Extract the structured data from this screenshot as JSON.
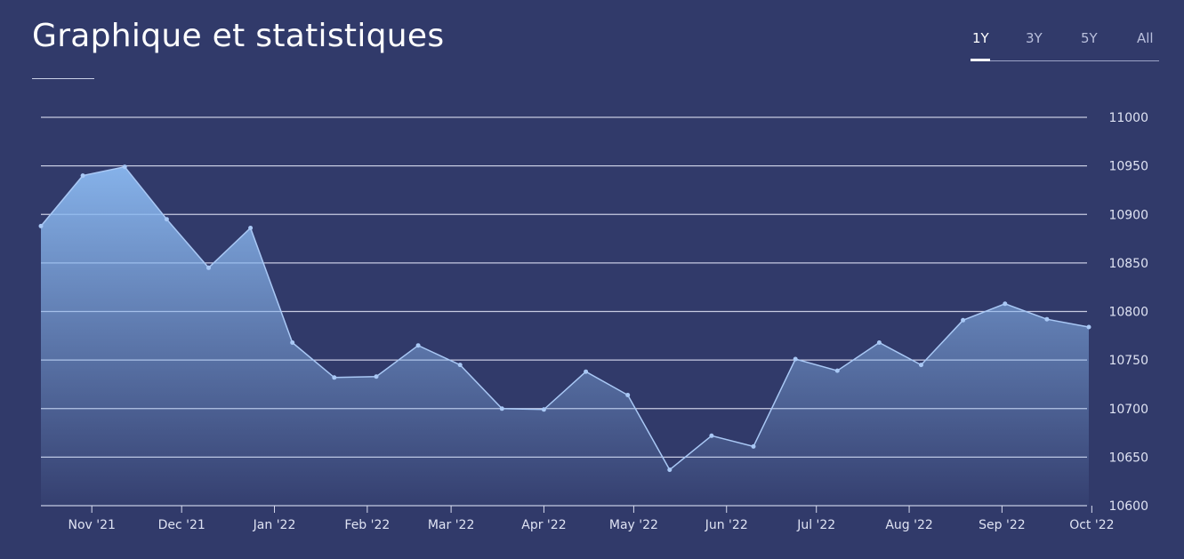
{
  "header": {
    "title": "Graphique et statistiques",
    "ranges": [
      "1Y",
      "3Y",
      "5Y",
      "All"
    ],
    "active_range": "1Y"
  },
  "colors": {
    "background": "#313a6a",
    "line": "#a9c8f5",
    "fill_top": "#8ab8f0",
    "grid": "#d8dcf0",
    "active_tab": "#ffffff"
  },
  "chart_data": {
    "type": "area",
    "xlabel": "",
    "ylabel": "",
    "ylim": [
      10600,
      11000
    ],
    "y_ticks": [
      10600,
      10650,
      10700,
      10750,
      10800,
      10850,
      10900,
      10950,
      11000
    ],
    "y_axis_position": "right",
    "grid": true,
    "x_ticks": [
      {
        "label": "Nov '21",
        "date": "2021-11-01"
      },
      {
        "label": "Dec '21",
        "date": "2021-12-01"
      },
      {
        "label": "Jan '22",
        "date": "2022-01-01"
      },
      {
        "label": "Feb '22",
        "date": "2022-02-01"
      },
      {
        "label": "Mar '22",
        "date": "2022-03-01"
      },
      {
        "label": "Apr '22",
        "date": "2022-04-01"
      },
      {
        "label": "May '22",
        "date": "2022-05-01"
      },
      {
        "label": "Jun '22",
        "date": "2022-06-01"
      },
      {
        "label": "Jul '22",
        "date": "2022-07-01"
      },
      {
        "label": "Aug '22",
        "date": "2022-08-01"
      },
      {
        "label": "Sep '22",
        "date": "2022-09-01"
      },
      {
        "label": "Oct '22",
        "date": "2022-10-01"
      }
    ],
    "series": [
      {
        "points": [
          {
            "date": "2021-10-15",
            "value": 10888
          },
          {
            "date": "2021-10-29",
            "value": 10940
          },
          {
            "date": "2021-11-12",
            "value": 10949
          },
          {
            "date": "2021-11-26",
            "value": 10895
          },
          {
            "date": "2021-12-10",
            "value": 10845
          },
          {
            "date": "2021-12-24",
            "value": 10886
          },
          {
            "date": "2022-01-07",
            "value": 10768
          },
          {
            "date": "2022-01-21",
            "value": 10732
          },
          {
            "date": "2022-02-04",
            "value": 10733
          },
          {
            "date": "2022-02-18",
            "value": 10765
          },
          {
            "date": "2022-03-04",
            "value": 10745
          },
          {
            "date": "2022-03-18",
            "value": 10700
          },
          {
            "date": "2022-04-01",
            "value": 10699
          },
          {
            "date": "2022-04-15",
            "value": 10738
          },
          {
            "date": "2022-04-29",
            "value": 10714
          },
          {
            "date": "2022-05-13",
            "value": 10637
          },
          {
            "date": "2022-05-27",
            "value": 10672
          },
          {
            "date": "2022-06-10",
            "value": 10661
          },
          {
            "date": "2022-06-24",
            "value": 10751
          },
          {
            "date": "2022-07-08",
            "value": 10739
          },
          {
            "date": "2022-07-22",
            "value": 10768
          },
          {
            "date": "2022-08-05",
            "value": 10745
          },
          {
            "date": "2022-08-19",
            "value": 10791
          },
          {
            "date": "2022-09-02",
            "value": 10808
          },
          {
            "date": "2022-09-16",
            "value": 10792
          },
          {
            "date": "2022-09-30",
            "value": 10784
          }
        ]
      }
    ]
  }
}
